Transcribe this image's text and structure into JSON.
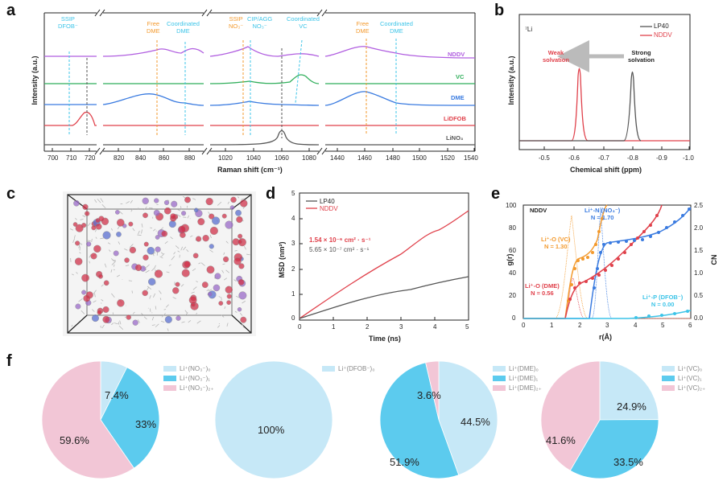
{
  "panels": {
    "a": "a",
    "b": "b",
    "c": "c",
    "d": "d",
    "e": "e",
    "f": "f"
  },
  "colors": {
    "nddv": "#b15fe0",
    "vc": "#2fae5a",
    "dme": "#3a7be0",
    "lidfob": "#e0414b",
    "lino3": "#555555",
    "orange": "#f39a2e",
    "cyan": "#3cc4e8",
    "red": "#e0414b",
    "grey": "#555555",
    "pie_light": "#c6e8f7",
    "pie_mid": "#5ccbee",
    "pie_pink": "#f2c6d6"
  },
  "panel_a": {
    "ylabel": "Intensity (a.u.)",
    "xlabel": "Raman shift (cm⁻¹)",
    "series": [
      "NDDV",
      "VC",
      "DME",
      "LiDFOB",
      "LiNO₃"
    ],
    "annotations": {
      "ssip_dfob": "SSIP\nDFOB⁻",
      "free_dme": "Free\nDME",
      "coord_dme": "Coordinated\nDME",
      "ssip_no3": "SSIP\nNO₃⁻",
      "cip_agg": "CIP/AGG\nNO₃⁻",
      "coord_vc": "Coordinated\nVC",
      "free_dme2": "Free\nDME",
      "coord_dme2": "Coordinated\nDME"
    },
    "ticks1": [
      "700",
      "710",
      "720"
    ],
    "ticks2": [
      "820",
      "840",
      "860",
      "880"
    ],
    "ticks3": [
      "1020",
      "1040",
      "1060",
      "1080"
    ],
    "ticks4": [
      "1440",
      "1460",
      "1480",
      "1500",
      "1520",
      "1540"
    ]
  },
  "panel_b": {
    "title": "⁷Li",
    "ylabel": "Intensity (a.u.)",
    "xlabel": "Chemical shift (ppm)",
    "legend": [
      "LP40",
      "NDDV"
    ],
    "weak": "Weak\nsolvation",
    "strong": "Strong\nsolvation",
    "xticks": [
      "-0.5",
      "-0.6",
      "-0.7",
      "-0.8",
      "-0.9",
      "-1.0"
    ]
  },
  "panel_d": {
    "ylabel": "MSD (nm²)",
    "xlabel": "Time (ns)",
    "legend": [
      "LP40",
      "NDDV"
    ],
    "coef_nddv": "1.54 × 10⁻⁶ cm² · s⁻¹",
    "coef_lp40": "5.65 × 10⁻⁷ cm² · s⁻¹",
    "xticks": [
      "0",
      "1",
      "2",
      "3",
      "4",
      "5"
    ],
    "yticks": [
      "0",
      "1",
      "2",
      "3",
      "4",
      "5"
    ]
  },
  "panel_e": {
    "title": "NDDV",
    "ylabel": "g(r)",
    "ylabel2": "CN",
    "xlabel": "r(Å)",
    "l_no3": "Li⁺-N (NO₃⁻)\nN = 1.70",
    "l_vc": "Li⁺-O (VC)\nN = 1.30",
    "l_dme": "Li⁺-O (DME)\nN = 0.56",
    "l_dfob": "Li⁺-P (DFOB⁻)\nN = 0.00",
    "yticks": [
      "0",
      "20",
      "40",
      "60",
      "80",
      "100"
    ],
    "y2ticks": [
      "0.0",
      "0.5",
      "1.0",
      "1.5",
      "2.0",
      "2.5"
    ],
    "xticks": [
      "0",
      "1",
      "2",
      "3",
      "4",
      "5",
      "6"
    ]
  },
  "chart_data": [
    {
      "type": "pie",
      "title": "Li⁺(NO₃⁻)",
      "legend": [
        "Li⁺(NO₃⁻)₀",
        "Li⁺(NO₃⁻)₁",
        "Li⁺(NO₃⁻)₂₊"
      ],
      "values": [
        7.4,
        33,
        59.6
      ],
      "labels": [
        "7.4%",
        "33%",
        "59.6%"
      ]
    },
    {
      "type": "pie",
      "title": "Li⁺(DFOB⁻)",
      "legend": [
        "Li⁺(DFOB⁻)₀"
      ],
      "values": [
        100
      ],
      "labels": [
        "100%"
      ]
    },
    {
      "type": "pie",
      "title": "Li⁺(DME)",
      "legend": [
        "Li⁺(DME)₀",
        "Li⁺(DME)₁",
        "Li⁺(DME)₂₊"
      ],
      "values": [
        44.5,
        51.9,
        3.6
      ],
      "labels": [
        "44.5%",
        "51.9%",
        "3.6%"
      ]
    },
    {
      "type": "pie",
      "title": "Li⁺(VC)",
      "legend": [
        "Li⁺(VC)₀",
        "Li⁺(VC)₁",
        "Li⁺(VC)₂₊"
      ],
      "values": [
        24.9,
        33.5,
        41.6
      ],
      "labels": [
        "24.9%",
        "33.5%",
        "41.6%"
      ]
    }
  ]
}
